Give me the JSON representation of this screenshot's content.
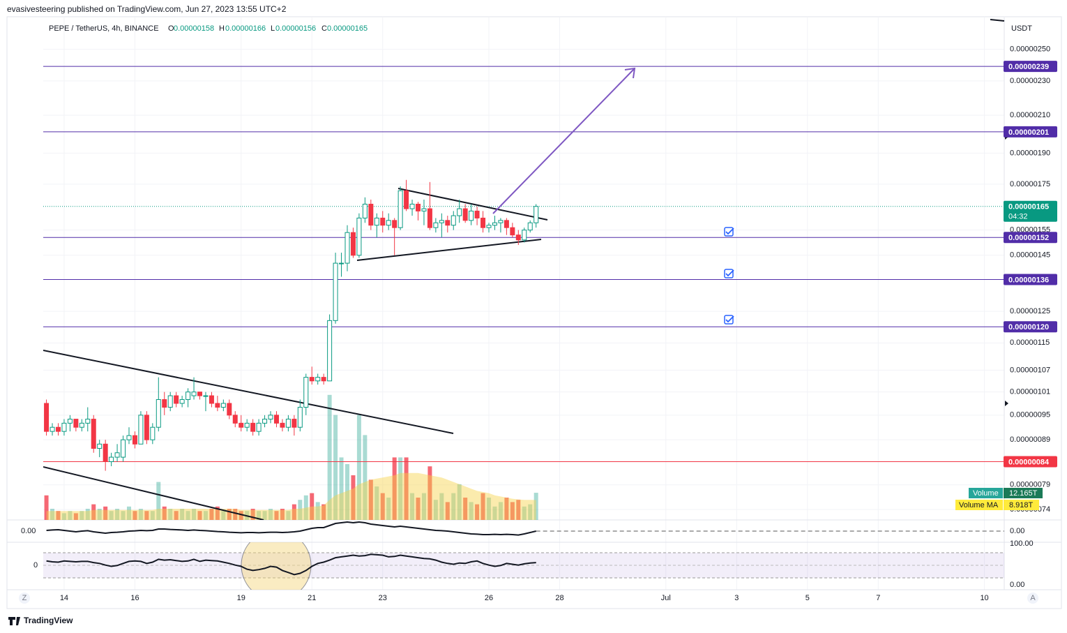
{
  "header": {
    "publisher": "evasivesteering published on TradingView.com, Jun 27, 2023 13:55 UTC+2",
    "footer": "TradingView",
    "buttons": [
      "Z",
      "A"
    ]
  },
  "chart_data": {
    "type": "candlestick",
    "title": "PEPE / TetherUS, 4h, BINANCE",
    "ohlc_legend": [
      {
        "label": "O",
        "value": "0.00000158"
      },
      {
        "label": "H",
        "value": "0.00000166"
      },
      {
        "label": "L",
        "value": "0.00000156"
      },
      {
        "label": "C",
        "value": "0.00000165"
      }
    ],
    "currency": "USDT",
    "log_scale": true,
    "grid": true,
    "up_color": "#089981",
    "down_color": "#f23645",
    "xlim": [
      13.41,
      40.56
    ],
    "xticks": [
      14,
      16,
      19,
      21,
      23,
      26,
      28,
      {
        "value": 31,
        "label": "Jul"
      },
      {
        "value": 33,
        "label": "3"
      },
      {
        "value": 35,
        "label": "5"
      },
      {
        "value": 37,
        "label": "7"
      },
      {
        "value": 40,
        "label": "10"
      }
    ],
    "ylim": [
      7.2e-07,
      2.72e-06
    ],
    "yticks": [
      {
        "value": 2.5e-06,
        "label": "0.00000250"
      },
      {
        "value": 2.3e-06,
        "label": "0.00000230"
      },
      {
        "value": 2.1e-06,
        "label": "0.00000210"
      },
      {
        "value": 1.9e-06,
        "label": "0.00000190"
      },
      {
        "value": 1.75e-06,
        "label": "0.00000175"
      },
      {
        "value": 1.55e-06,
        "label": "0.00000155"
      },
      {
        "value": 1.45e-06,
        "label": "0.00000145"
      },
      {
        "value": 1.25e-06,
        "label": "0.00000125"
      },
      {
        "value": 1.15e-06,
        "label": "0.00000115"
      },
      {
        "value": 1.07e-06,
        "label": "0.00000107"
      },
      {
        "value": 1.01e-06,
        "label": "0.00000101"
      },
      {
        "value": 9.5e-07,
        "label": "0.00000095"
      },
      {
        "value": 8.9e-07,
        "label": "0.00000089"
      },
      {
        "value": 7.9e-07,
        "label": "0.00000079"
      },
      {
        "value": 7.4e-07,
        "label": "0.00000074"
      }
    ],
    "price_levels": [
      {
        "value": 2.39e-06,
        "label": "0.00000239",
        "color": "#512da8"
      },
      {
        "value": 2.01e-06,
        "label": "0.00000201",
        "color": "#512da8"
      },
      {
        "value": 1.52e-06,
        "label": "0.00000152",
        "color": "#512da8"
      },
      {
        "value": 1.36e-06,
        "label": "0.00000136",
        "color": "#512da8"
      },
      {
        "value": 1.2e-06,
        "label": "0.00000120",
        "color": "#512da8"
      },
      {
        "value": 8.4e-07,
        "label": "0.00000084",
        "color": "#f23645"
      }
    ],
    "current_price": {
      "value": 1.65e-06,
      "label": "0.00000165",
      "countdown": "04:32",
      "color": "#089981"
    },
    "x": [
      13.5,
      13.6667,
      13.8333,
      14,
      14.1667,
      14.3333,
      14.5,
      14.6667,
      14.8333,
      15,
      15.1667,
      15.3333,
      15.5,
      15.6667,
      15.8333,
      16,
      16.1667,
      16.3333,
      16.5,
      16.6667,
      16.8333,
      17,
      17.1667,
      17.3333,
      17.5,
      17.6667,
      17.8333,
      18,
      18.1667,
      18.3333,
      18.5,
      18.6667,
      18.8333,
      19,
      19.1667,
      19.3333,
      19.5,
      19.6667,
      19.8333,
      20,
      20.1667,
      20.3333,
      20.5,
      20.6667,
      20.8333,
      21,
      21.1667,
      21.3333,
      21.5,
      21.6667,
      21.8333,
      22,
      22.1667,
      22.3333,
      22.5,
      22.6667,
      22.8333,
      23,
      23.1667,
      23.3333,
      23.5,
      23.6667,
      23.8333,
      24,
      24.1667,
      24.3333,
      24.5,
      24.6667,
      24.8333,
      25,
      25.1667,
      25.3333,
      25.5,
      25.6667,
      25.8333,
      26,
      26.1667,
      26.3333,
      26.5,
      26.6667,
      26.8333,
      27,
      27.1667,
      27.3333
    ],
    "ohlc": [
      [
        9.8e-07,
        9.9e-07,
        9e-07,
        9.1e-07
      ],
      [
        9.1e-07,
        9.3e-07,
        9e-07,
        9.2e-07
      ],
      [
        9.2e-07,
        9.3e-07,
        9e-07,
        9.1e-07
      ],
      [
        9.1e-07,
        9.4e-07,
        9e-07,
        9.3e-07
      ],
      [
        9.3e-07,
        9.5e-07,
        9.1e-07,
        9.4e-07
      ],
      [
        9.4e-07,
        9.4e-07,
        9.1e-07,
        9.2e-07
      ],
      [
        9.2e-07,
        9.4e-07,
        9.1e-07,
        9.3e-07
      ],
      [
        9.3e-07,
        9.7e-07,
        9.1e-07,
        9.4e-07
      ],
      [
        9.4e-07,
        9.5e-07,
        8.6e-07,
        8.7e-07
      ],
      [
        8.7e-07,
        8.9e-07,
        8.5e-07,
        8.8e-07
      ],
      [
        8.8e-07,
        8.9e-07,
        8.2e-07,
        8.4e-07
      ],
      [
        8.4e-07,
        8.6e-07,
        8.3e-07,
        8.5e-07
      ],
      [
        8.5e-07,
        8.8e-07,
        8.4e-07,
        8.6e-07
      ],
      [
        8.5e-07,
        9e-07,
        8.4e-07,
        8.9e-07
      ],
      [
        8.9e-07,
        9.2e-07,
        8.8e-07,
        9e-07
      ],
      [
        9e-07,
        9.1e-07,
        8.7e-07,
        8.8e-07
      ],
      [
        8.8e-07,
        9.6e-07,
        8.8e-07,
        9.5e-07
      ],
      [
        9.5e-07,
        9.6e-07,
        8.8e-07,
        8.9e-07
      ],
      [
        8.9e-07,
        9.3e-07,
        8.8e-07,
        9.2e-07
      ],
      [
        9.2e-07,
        1.05e-06,
        9.1e-07,
        9.9e-07
      ],
      [
        9.9e-07,
        1.01e-06,
        9.5e-07,
        9.7e-07
      ],
      [
        9.7e-07,
        1.01e-06,
        9.6e-07,
        1e-06
      ],
      [
        1e-06,
        1.01e-06,
        9.7e-07,
        9.8e-07
      ],
      [
        9.8e-07,
        1e-06,
        9.7e-07,
        9.9e-07
      ],
      [
        9.9e-07,
        1.02e-06,
        9.7e-07,
        1.01e-06
      ],
      [
        1e-06,
        1.05e-06,
        9.9e-07,
        1.01e-06
      ],
      [
        1.01e-06,
        1.01e-06,
        9.9e-07,
        1e-06
      ],
      [
        1e-06,
        1.01e-06,
        9.6e-07,
        1e-06
      ],
      [
        1e-06,
        1.01e-06,
        9.7e-07,
        9.8e-07
      ],
      [
        9.8e-07,
        1e-06,
        9.6e-07,
        9.7e-07
      ],
      [
        9.7e-07,
        9.9e-07,
        9.6e-07,
        9.8e-07
      ],
      [
        9.8e-07,
        9.9e-07,
        9.4e-07,
        9.5e-07
      ],
      [
        9.5e-07,
        9.6e-07,
        9.2e-07,
        9.3e-07
      ],
      [
        9.3e-07,
        9.5e-07,
        9.1e-07,
        9.2e-07
      ],
      [
        9.2e-07,
        9.4e-07,
        9.1e-07,
        9.3e-07
      ],
      [
        9.3e-07,
        9.4e-07,
        9e-07,
        9.1e-07
      ],
      [
        9.1e-07,
        9.4e-07,
        9e-07,
        9.3e-07
      ],
      [
        9.3e-07,
        9.5e-07,
        9.2e-07,
        9.4e-07
      ],
      [
        9.4e-07,
        9.6e-07,
        9.3e-07,
        9.5e-07
      ],
      [
        9.5e-07,
        9.6e-07,
        9.2e-07,
        9.3e-07
      ],
      [
        9.3e-07,
        9.4e-07,
        9.1e-07,
        9.2e-07
      ],
      [
        9.2e-07,
        9.5e-07,
        9.1e-07,
        9.4e-07
      ],
      [
        9.4e-07,
        9.5e-07,
        9e-07,
        9.2e-07
      ],
      [
        9.2e-07,
        9.9e-07,
        9.1e-07,
        9.7e-07
      ],
      [
        9.7e-07,
        1.06e-06,
        9.5e-07,
        1.05e-06
      ],
      [
        1.05e-06,
        1.08e-06,
        1.03e-06,
        1.04e-06
      ],
      [
        1.04e-06,
        1.06e-06,
        1.03e-06,
        1.05e-06
      ],
      [
        1.05e-06,
        1.06e-06,
        1.03e-06,
        1.04e-06
      ],
      [
        1.04e-06,
        1.24e-06,
        1.04e-06,
        1.22e-06
      ],
      [
        1.22e-06,
        1.46e-06,
        1.21e-06,
        1.42e-06
      ],
      [
        1.42e-06,
        1.46e-06,
        1.37e-06,
        1.42e-06
      ],
      [
        1.42e-06,
        1.57e-06,
        1.39e-06,
        1.54e-06
      ],
      [
        1.54e-06,
        1.56e-06,
        1.44e-06,
        1.45e-06
      ],
      [
        1.45e-06,
        1.62e-06,
        1.44e-06,
        1.6e-06
      ],
      [
        1.6e-06,
        1.69e-06,
        1.58e-06,
        1.66e-06
      ],
      [
        1.66e-06,
        1.68e-06,
        1.55e-06,
        1.57e-06
      ],
      [
        1.57e-06,
        1.62e-06,
        1.52e-06,
        1.6e-06
      ],
      [
        1.6e-06,
        1.63e-06,
        1.54e-06,
        1.57e-06
      ],
      [
        1.57e-06,
        1.62e-06,
        1.55e-06,
        1.59e-06
      ],
      [
        1.59e-06,
        1.6e-06,
        1.45e-06,
        1.56e-06
      ],
      [
        1.56e-06,
        1.74e-06,
        1.55e-06,
        1.72e-06
      ],
      [
        1.72e-06,
        1.77e-06,
        1.63e-06,
        1.64e-06
      ],
      [
        1.64e-06,
        1.68e-06,
        1.61e-06,
        1.66e-06
      ],
      [
        1.66e-06,
        1.67e-06,
        1.59e-06,
        1.63e-06
      ],
      [
        1.63e-06,
        1.68e-06,
        1.57e-06,
        1.64e-06
      ],
      [
        1.64e-06,
        1.76e-06,
        1.55e-06,
        1.56e-06
      ],
      [
        1.56e-06,
        1.6e-06,
        1.54e-06,
        1.58e-06
      ],
      [
        1.58e-06,
        1.62e-06,
        1.52e-06,
        1.59e-06
      ],
      [
        1.59e-06,
        1.61e-06,
        1.54e-06,
        1.57e-06
      ],
      [
        1.57e-06,
        1.63e-06,
        1.55e-06,
        1.61e-06
      ],
      [
        1.61e-06,
        1.68e-06,
        1.58e-06,
        1.64e-06
      ],
      [
        1.64e-06,
        1.66e-06,
        1.58e-06,
        1.59e-06
      ],
      [
        1.59e-06,
        1.66e-06,
        1.57e-06,
        1.63e-06
      ],
      [
        1.63e-06,
        1.65e-06,
        1.57e-06,
        1.6e-06
      ],
      [
        1.6e-06,
        1.63e-06,
        1.54e-06,
        1.56e-06
      ],
      [
        1.56e-06,
        1.58e-06,
        1.54e-06,
        1.57e-06
      ],
      [
        1.57e-06,
        1.61e-06,
        1.55e-06,
        1.58e-06
      ],
      [
        1.58e-06,
        1.6e-06,
        1.54e-06,
        1.59e-06
      ],
      [
        1.59e-06,
        1.6e-06,
        1.53e-06,
        1.56e-06
      ],
      [
        1.56e-06,
        1.58e-06,
        1.52e-06,
        1.53e-06
      ],
      [
        1.53e-06,
        1.55e-06,
        1.49e-06,
        1.51e-06
      ],
      [
        1.51e-06,
        1.56e-06,
        1.5e-06,
        1.55e-06
      ],
      [
        1.55e-06,
        1.59e-06,
        1.54e-06,
        1.58e-06
      ],
      [
        1.58e-06,
        1.66e-06,
        1.56e-06,
        1.65e-06
      ]
    ],
    "volume": {
      "name": "Volume",
      "value_label": "12.165T",
      "ylim": [
        0,
        100000000000000.0
      ],
      "color": "#26a69a",
      "values": [
        11000000000000.0,
        5000000000000.0,
        4000000000000.0,
        3000000000000.0,
        4000000000000.0,
        3000000000000.0,
        4000000000000.0,
        5000000000000.0,
        7000000000000.0,
        5000000000000.0,
        6000000000000.0,
        4000000000000.0,
        5000000000000.0,
        4000000000000.0,
        6000000000000.0,
        4000000000000.0,
        5000000000000.0,
        4000000000000.0,
        4000000000000.0,
        17000000000000.0,
        6000000000000.0,
        5000000000000.0,
        4000000000000.0,
        5000000000000.0,
        4000000000000.0,
        5000000000000.0,
        4000000000000.0,
        4000000000000.0,
        5000000000000.0,
        6000000000000.0,
        4000000000000.0,
        5000000000000.0,
        5000000000000.0,
        4000000000000.0,
        4000000000000.0,
        5000000000000.0,
        4000000000000.0,
        4000000000000.0,
        5000000000000.0,
        4000000000000.0,
        5000000000000.0,
        4000000000000.0,
        7000000000000.0,
        9000000000000.0,
        11000000000000.0,
        12000000000000.0,
        8000000000000.0,
        7000000000000.0,
        56000000000000.0,
        47000000000000.0,
        28000000000000.0,
        25000000000000.0,
        20000000000000.0,
        47000000000000.0,
        38000000000000.0,
        18000000000000.0,
        15000000000000.0,
        12000000000000.0,
        10000000000000.0,
        28000000000000.0,
        28000000000000.0,
        28000000000000.0,
        12000000000000.0,
        10000000000000.0,
        12000000000000.0,
        24000000000000.0,
        9000000000000.0,
        12000000000000.0,
        8000000000000.0,
        12000000000000.0,
        16000000000000.0,
        10000000000000.0,
        8000000000000.0,
        7000000000000.0,
        12000000000000.0,
        10000000000000.0,
        6000000000000.0,
        8000000000000.0,
        10000000000000.0,
        8000000000000.0,
        9000000000000.0,
        6000000000000.0,
        7000000000000.0,
        12165000000000.0
      ]
    },
    "volume_ma": {
      "name": "Volume MA",
      "value_label": "8.918T",
      "color": "#f7d34a",
      "values": [
        4000000000000.0,
        4000000000000.0,
        4000000000000.0,
        4000000000000.0,
        4000000000000.0,
        4000000000000.0,
        4000000000000.0,
        4000000000000.0,
        4500000000000.0,
        4500000000000.0,
        4500000000000.0,
        4500000000000.0,
        4500000000000.0,
        4500000000000.0,
        4500000000000.0,
        4500000000000.0,
        4500000000000.0,
        4500000000000.0,
        4500000000000.0,
        5000000000000.0,
        5000000000000.0,
        5000000000000.0,
        5000000000000.0,
        5000000000000.0,
        5000000000000.0,
        5000000000000.0,
        5000000000000.0,
        5000000000000.0,
        5000000000000.0,
        5000000000000.0,
        5000000000000.0,
        5000000000000.0,
        5000000000000.0,
        4500000000000.0,
        4500000000000.0,
        4500000000000.0,
        4500000000000.0,
        4500000000000.0,
        4500000000000.0,
        4500000000000.0,
        4500000000000.0,
        4500000000000.0,
        5000000000000.0,
        5000000000000.0,
        5500000000000.0,
        6000000000000.0,
        6000000000000.0,
        6500000000000.0,
        9000000000000.0,
        11000000000000.0,
        12000000000000.0,
        13000000000000.0,
        14000000000000.0,
        16000000000000.0,
        17000000000000.0,
        18000000000000.0,
        18500000000000.0,
        19000000000000.0,
        19500000000000.0,
        20000000000000.0,
        21000000000000.0,
        21000000000000.0,
        21000000000000.0,
        21000000000000.0,
        20500000000000.0,
        20000000000000.0,
        19500000000000.0,
        19000000000000.0,
        18000000000000.0,
        17000000000000.0,
        16000000000000.0,
        15000000000000.0,
        14000000000000.0,
        13000000000000.0,
        12500000000000.0,
        12000000000000.0,
        11000000000000.0,
        10500000000000.0,
        10000000000000.0,
        9500000000000.0,
        9200000000000.0,
        9000000000000.0,
        9000000000000.0,
        8918000000000.0
      ]
    },
    "osc1": {
      "ylim": [
        -8e-08,
        8e-08
      ],
      "yticks": [
        {
          "value": 0,
          "label": "0.00"
        }
      ],
      "color": "#131722",
      "values": [
        5e-09,
        8e-09,
        1e-08,
        5e-09,
        0,
        -5e-09,
        0,
        3e-09,
        -5e-09,
        -1e-08,
        -1.5e-08,
        -1e-08,
        -8e-09,
        -5e-09,
        0,
        2e-09,
        5e-09,
        3e-09,
        5e-09,
        1.5e-08,
        1.5e-08,
        1.2e-08,
        1e-08,
        8e-09,
        5e-09,
        8e-09,
        5e-09,
        3e-09,
        0,
        -3e-09,
        -5e-09,
        -8e-09,
        -1e-08,
        -1.2e-08,
        -1e-08,
        -1e-08,
        -1.2e-08,
        -1e-08,
        -8e-09,
        -8e-09,
        -1e-08,
        -8e-09,
        -5e-09,
        0,
        1e-08,
        2e-08,
        2.5e-08,
        2.5e-08,
        4e-08,
        5.5e-08,
        6e-08,
        6.5e-08,
        6e-08,
        6.5e-08,
        6e-08,
        5e-08,
        4.5e-08,
        4e-08,
        3.5e-08,
        3e-08,
        3.5e-08,
        3e-08,
        2.5e-08,
        2e-08,
        1.5e-08,
        1e-08,
        5e-09,
        3e-09,
        0,
        -5e-09,
        -1e-08,
        -1.5e-08,
        -2e-08,
        -2.2e-08,
        -2.5e-08,
        -2.5e-08,
        -2.3e-08,
        -2.5e-08,
        -2.3e-08,
        -2.5e-08,
        -2.8e-08,
        -2e-08,
        -1e-08,
        0
      ]
    },
    "osc2": {
      "ylim": [
        0,
        100
      ],
      "yticks": [
        {
          "value": 100,
          "label": "100.00"
        },
        {
          "value": 0,
          "label": "0.00"
        }
      ],
      "left_label": "0",
      "color": "#131722",
      "values": [
        58,
        56,
        55,
        58,
        57,
        56,
        57,
        57,
        54,
        52,
        48,
        45,
        47,
        52,
        57,
        58,
        57,
        52,
        55,
        62,
        60,
        61,
        59,
        57,
        58,
        62,
        57,
        60,
        59,
        58,
        55,
        52,
        48,
        45,
        38,
        35,
        37,
        40,
        45,
        43,
        35,
        30,
        25,
        28,
        35,
        45,
        52,
        55,
        60,
        66,
        68,
        70,
        72,
        70,
        71,
        74,
        73,
        72,
        68,
        69,
        72,
        70,
        68,
        66,
        64,
        63,
        60,
        55,
        52,
        50,
        53,
        52,
        56,
        58,
        52,
        48,
        45,
        47,
        52,
        50,
        48,
        51,
        53,
        54
      ]
    }
  }
}
